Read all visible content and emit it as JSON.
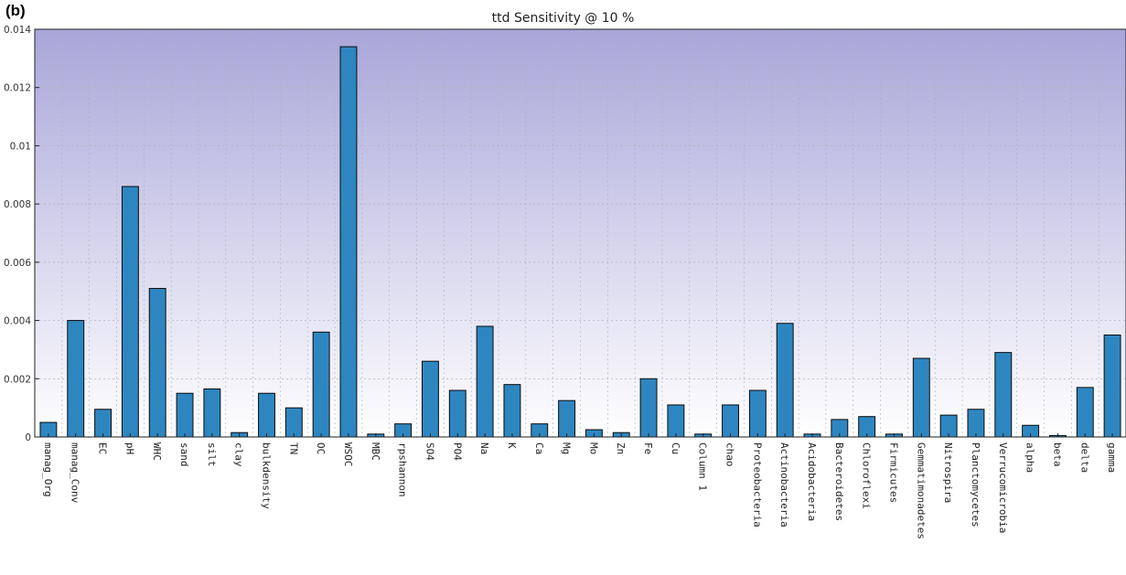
{
  "panel_label": "(b)",
  "chart_data": {
    "type": "bar",
    "title": "ttd Sensitivity @ 10 %",
    "xlabel": "",
    "ylabel": "",
    "ylim": [
      0,
      0.014
    ],
    "yticks": [
      0,
      0.002,
      0.004,
      0.006,
      0.008,
      0.01,
      0.012,
      0.014
    ],
    "ytick_labels": [
      "0",
      "0.002",
      "0.004",
      "0.006",
      "0.008",
      "0.01",
      "0.012",
      "0.014"
    ],
    "grid": true,
    "categories": [
      "manag_Org",
      "manag_Conv",
      "EC",
      "pH",
      "WHC",
      "sand",
      "silt",
      "clay",
      "bulkdensity",
      "TN",
      "OC",
      "WSOC",
      "MBC",
      "rpshannon",
      "SO4",
      "PO4",
      "Na",
      "K",
      "Ca",
      "Mg",
      "Mo",
      "Zn",
      "Fe",
      "Cu",
      "Column 1",
      "chao",
      "Proteobacteria",
      "Actinobacteria",
      "Acidobacteria",
      "Bacteroidetes",
      "Chloroflexi",
      "Firmicutes",
      "Gemmatimonadetes",
      "Nitrospira",
      "Planctomycetes",
      "Verrucomicrobia",
      "alpha",
      "beta",
      "delta",
      "gamma"
    ],
    "values": [
      0.0005,
      0.004,
      0.00095,
      0.0086,
      0.0051,
      0.0015,
      0.00165,
      0.00015,
      0.0015,
      0.001,
      0.0036,
      0.0134,
      0.0001,
      0.00045,
      0.0026,
      0.0016,
      0.0038,
      0.0018,
      0.00045,
      0.00125,
      0.00025,
      0.00015,
      0.002,
      0.0011,
      0.0001,
      0.0011,
      0.0016,
      0.0039,
      0.0001,
      0.0006,
      0.0007,
      0.0001,
      0.0027,
      0.00075,
      0.00095,
      0.0029,
      0.0004,
      5e-05,
      0.0017,
      0.0035
    ],
    "colors": {
      "bar": "#2e86c1",
      "bar_edge": "#0b0b0b",
      "background_top": "#a9a6d9",
      "background_bottom": "#ffffff",
      "grid": "#b0b0b0"
    }
  }
}
